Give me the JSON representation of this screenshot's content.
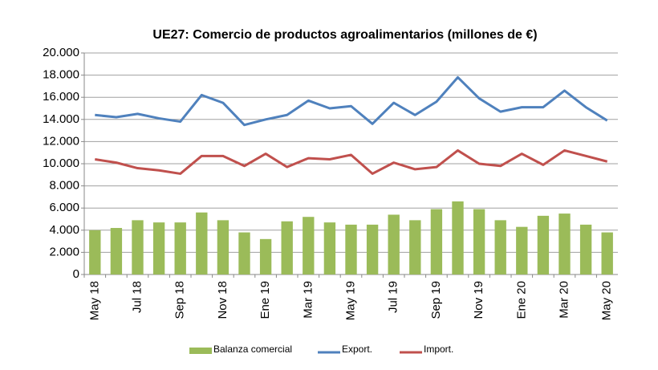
{
  "chart_data": {
    "type": "bar",
    "title": "UE27: Comercio de productos agroalimentarios (millones de €)",
    "categories": [
      "May 18",
      null,
      "Jul 18",
      null,
      "Sep 18",
      null,
      "Nov 18",
      null,
      "Ene 19",
      null,
      "Mar 19",
      null,
      "May 19",
      null,
      "Jul 19",
      null,
      "Sep 19",
      null,
      "Nov 19",
      null,
      "Ene 20",
      null,
      "Mar 20",
      null,
      "May 20"
    ],
    "series": [
      {
        "name": "Balanza comercial",
        "type": "bar",
        "color": "#9bbb59",
        "values": [
          4000,
          4200,
          4900,
          4700,
          4700,
          5600,
          4900,
          3800,
          3200,
          4800,
          5200,
          4700,
          4500,
          4500,
          5400,
          4900,
          5900,
          6600,
          5900,
          4900,
          4300,
          5300,
          5500,
          4500,
          3800
        ]
      },
      {
        "name": "Export.",
        "type": "line",
        "color": "#4f81bd",
        "values": [
          14400,
          14200,
          14500,
          14100,
          13800,
          16200,
          15500,
          13500,
          14000,
          14400,
          15700,
          15000,
          15200,
          13600,
          15500,
          14400,
          15600,
          17800,
          15900,
          14700,
          15100,
          15100,
          16600,
          15100,
          13900
        ]
      },
      {
        "name": "Import.",
        "type": "line",
        "color": "#c0504d",
        "values": [
          10400,
          10100,
          9600,
          9400,
          9100,
          10700,
          10700,
          9800,
          10900,
          9700,
          10500,
          10400,
          10800,
          9100,
          10100,
          9500,
          9700,
          11200,
          10000,
          9800,
          10900,
          9900,
          11200,
          10700,
          10200
        ]
      }
    ],
    "ylim": [
      0,
      20000
    ],
    "yticks": [
      0,
      {
        "value": 2000,
        "label": "2.000"
      },
      {
        "value": 4000,
        "label": "4.000"
      },
      {
        "value": 6000,
        "label": "6.000"
      },
      {
        "value": 8000,
        "label": "8.000"
      },
      {
        "value": 10000,
        "label": "10.000"
      },
      {
        "value": 12000,
        "label": "12.000"
      },
      {
        "value": 14000,
        "label": "14.000"
      },
      {
        "value": 16000,
        "label": "16.000"
      },
      {
        "value": 18000,
        "label": "18.000"
      },
      {
        "value": 20000,
        "label": "20.000"
      }
    ],
    "grid": true,
    "legend": "bottom"
  }
}
